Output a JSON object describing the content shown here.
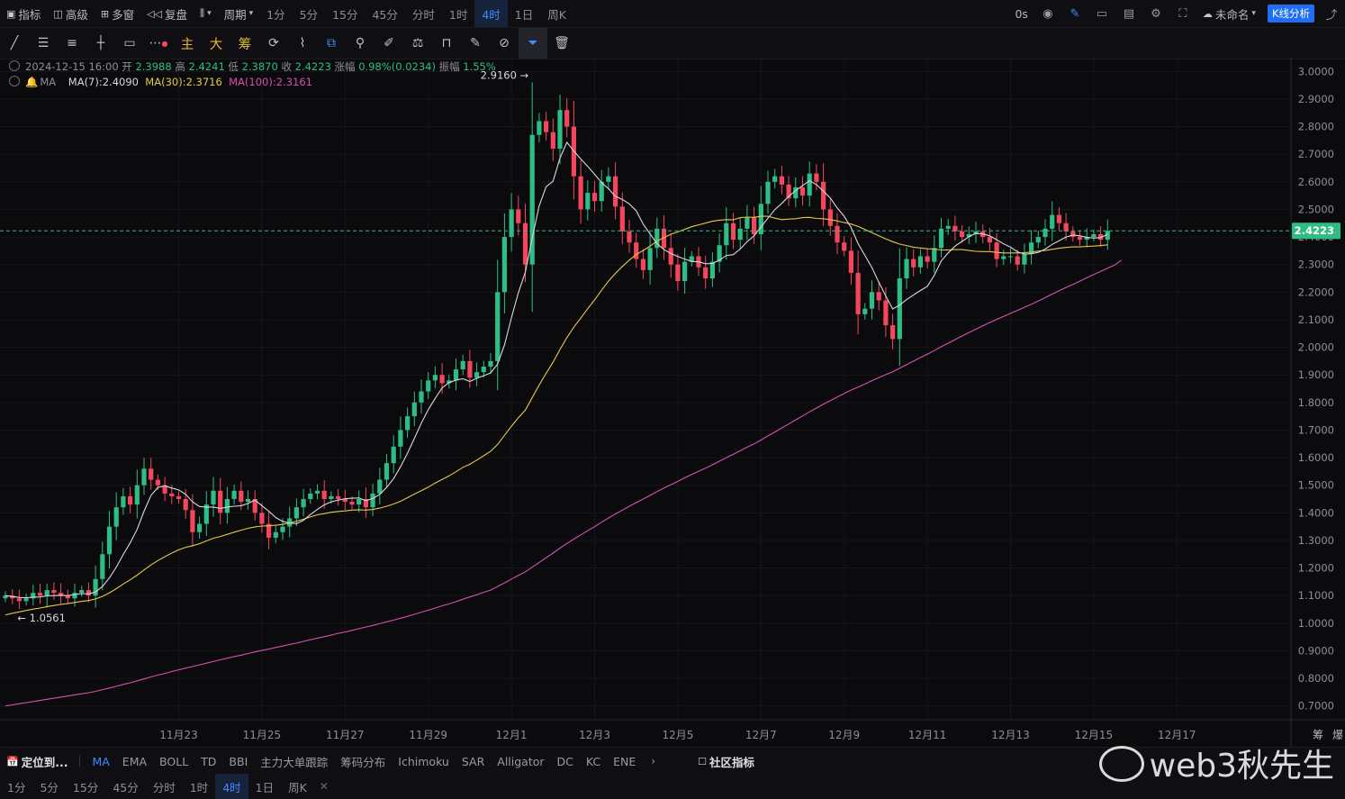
{
  "topbar": {
    "left": [
      {
        "label": "指标",
        "icon": "indicator-icon"
      },
      {
        "label": "高级",
        "icon": "advanced-icon"
      },
      {
        "label": "多窗",
        "icon": "multiwindow-icon"
      },
      {
        "label": "复盘",
        "icon": "replay-icon"
      }
    ],
    "chart_type_icon": "candlestick-icon",
    "period_label": "周期",
    "periods": [
      "1分",
      "5分",
      "15分",
      "45分",
      "分时",
      "1时",
      "4时",
      "1日",
      "周K"
    ],
    "active_period": "4时",
    "timer": "0s",
    "layout_name": "未命名",
    "k_analysis": "K线分析"
  },
  "toolbar": {
    "gold_labels": [
      "主",
      "大",
      "筹"
    ]
  },
  "legend": {
    "datetime": "2024-12-15 16:00",
    "open_label": "开",
    "open": "2.3988",
    "high_label": "高",
    "high": "2.4241",
    "low_label": "低",
    "low": "2.3870",
    "close_label": "收",
    "close": "2.4223",
    "change_label": "涨幅",
    "change": "0.98%(0.0234)",
    "amp_label": "振幅",
    "amp": "1.55%",
    "ma_title": "MA",
    "ma7": "MA(7):2.4090",
    "ma30": "MA(30):2.3716",
    "ma100": "MA(100):2.3161"
  },
  "indicators": {
    "locate": "定位到...",
    "items": [
      "MA",
      "EMA",
      "BOLL",
      "TD",
      "BBI",
      "主力大单跟踪",
      "筹码分布",
      "Ichimoku",
      "SAR",
      "Alligator",
      "DC",
      "KC",
      "ENE"
    ],
    "active": "MA",
    "community": "社区指标"
  },
  "bottombar": {
    "periods": [
      "1分",
      "5分",
      "15分",
      "45分",
      "分时",
      "1时",
      "4时",
      "1日",
      "周K"
    ],
    "active": "4时"
  },
  "watermark": "web3秋先生",
  "colors": {
    "up": "#2ebd85",
    "down": "#f6465d",
    "ma7": "#d8d8de",
    "ma30": "#e6c84a",
    "ma100": "#d94fb0",
    "last": "#2ebd85"
  },
  "chart_data": {
    "type": "candlestick",
    "interval": "4h",
    "ylim": [
      0.65,
      3.05
    ],
    "yticks": [
      "0.7000",
      "0.8000",
      "0.9000",
      "1.0000",
      "1.1000",
      "1.2000",
      "1.3000",
      "1.4000",
      "1.5000",
      "1.6000",
      "1.7000",
      "1.8000",
      "1.9000",
      "2.0000",
      "2.1000",
      "2.2000",
      "2.3000",
      "2.4000",
      "2.5000",
      "2.6000",
      "2.7000",
      "2.8000",
      "2.9000",
      "3.0000"
    ],
    "xticks": [
      "11月23",
      "11月25",
      "11月27",
      "11月29",
      "12月1",
      "12月3",
      "12月5",
      "12月7",
      "12月9",
      "12月11",
      "12月13",
      "12月15",
      "12月17"
    ],
    "xtick_candle_index": [
      25,
      37,
      49,
      61,
      73,
      85,
      97,
      109,
      121,
      133,
      145,
      157,
      169
    ],
    "last_price": "2.4223",
    "max_label": "2.9160",
    "min_label": "1.0561",
    "right_labels": [
      "筹",
      "爆"
    ],
    "close": [
      1.1,
      1.09,
      1.08,
      1.09,
      1.11,
      1.1,
      1.12,
      1.11,
      1.1,
      1.09,
      1.11,
      1.12,
      1.1,
      1.16,
      1.25,
      1.35,
      1.42,
      1.46,
      1.43,
      1.5,
      1.56,
      1.52,
      1.5,
      1.47,
      1.46,
      1.45,
      1.41,
      1.33,
      1.36,
      1.43,
      1.48,
      1.4,
      1.45,
      1.48,
      1.44,
      1.45,
      1.4,
      1.36,
      1.31,
      1.33,
      1.35,
      1.38,
      1.42,
      1.45,
      1.47,
      1.48,
      1.45,
      1.46,
      1.45,
      1.44,
      1.43,
      1.45,
      1.42,
      1.47,
      1.52,
      1.58,
      1.64,
      1.7,
      1.75,
      1.8,
      1.84,
      1.88,
      1.9,
      1.87,
      1.88,
      1.92,
      1.95,
      1.89,
      1.91,
      1.93,
      1.95,
      2.2,
      2.4,
      2.5,
      2.45,
      2.3,
      2.77,
      2.82,
      2.78,
      2.72,
      2.86,
      2.8,
      2.62,
      2.5,
      2.56,
      2.53,
      2.6,
      2.62,
      2.51,
      2.42,
      2.38,
      2.32,
      2.28,
      2.36,
      2.43,
      2.36,
      2.3,
      2.24,
      2.31,
      2.33,
      2.29,
      2.25,
      2.31,
      2.37,
      2.45,
      2.39,
      2.43,
      2.47,
      2.41,
      2.52,
      2.6,
      2.62,
      2.59,
      2.54,
      2.58,
      2.55,
      2.63,
      2.6,
      2.5,
      2.44,
      2.38,
      2.35,
      2.27,
      2.12,
      2.14,
      2.2,
      2.17,
      2.08,
      2.03,
      2.25,
      2.32,
      2.29,
      2.33,
      2.31,
      2.36,
      2.43,
      2.44,
      2.42,
      2.4,
      2.41,
      2.42,
      2.4,
      2.38,
      2.32,
      2.33,
      2.33,
      2.3,
      2.34,
      2.38,
      2.4,
      2.43,
      2.48,
      2.45,
      2.42,
      2.4,
      2.39,
      2.4,
      2.41,
      2.39,
      2.4223
    ],
    "ma7": [
      1.1,
      1.097,
      1.093,
      1.092,
      1.094,
      1.095,
      1.099,
      1.1,
      1.101,
      1.1,
      1.104,
      1.107,
      1.106,
      1.113,
      1.133,
      1.164,
      1.203,
      1.249,
      1.291,
      1.34,
      1.406,
      1.463,
      1.492,
      1.498,
      1.49,
      1.483,
      1.467,
      1.44,
      1.423,
      1.421,
      1.421,
      1.416,
      1.421,
      1.424,
      1.426,
      1.434,
      1.446,
      1.426,
      1.406,
      1.383,
      1.369,
      1.363,
      1.361,
      1.373,
      1.394,
      1.412,
      1.429,
      1.44,
      1.446,
      1.451,
      1.453,
      1.454,
      1.444,
      1.452,
      1.467,
      1.492,
      1.524,
      1.567,
      1.616,
      1.67,
      1.725,
      1.774,
      1.815,
      1.853,
      1.872,
      1.881,
      1.886,
      1.876,
      1.888,
      1.897,
      1.907,
      1.939,
      2.009,
      2.107,
      2.198,
      2.272,
      2.396,
      2.513,
      2.582,
      2.602,
      2.686,
      2.743,
      2.711,
      2.683,
      2.656,
      2.627,
      2.597,
      2.575,
      2.547,
      2.536,
      2.52,
      2.495,
      2.447,
      2.411,
      2.376,
      2.354,
      2.34,
      2.329,
      2.32,
      2.311,
      2.31,
      2.303,
      2.304,
      2.316,
      2.333,
      2.336,
      2.356,
      2.383,
      2.404,
      2.436,
      2.468,
      2.499,
      2.522,
      2.547,
      2.568,
      2.586,
      2.604,
      2.59,
      2.566,
      2.541,
      2.505,
      2.475,
      2.434,
      2.376,
      2.333,
      2.289,
      2.236,
      2.186,
      2.139,
      2.153,
      2.173,
      2.19,
      2.206,
      2.221,
      2.261,
      2.313,
      2.342,
      2.367,
      2.384,
      2.401,
      2.413,
      2.411,
      2.404,
      2.39,
      2.375,
      2.363,
      2.346,
      2.338,
      2.339,
      2.344,
      2.356,
      2.373,
      2.386,
      2.4,
      2.407,
      2.404,
      2.399,
      2.396,
      2.398,
      2.409
    ],
    "ma30": [
      1.03,
      1.036,
      1.041,
      1.046,
      1.051,
      1.055,
      1.06,
      1.064,
      1.068,
      1.071,
      1.075,
      1.079,
      1.082,
      1.088,
      1.097,
      1.11,
      1.125,
      1.142,
      1.157,
      1.174,
      1.193,
      1.211,
      1.227,
      1.241,
      1.254,
      1.266,
      1.275,
      1.281,
      1.288,
      1.298,
      1.308,
      1.314,
      1.322,
      1.33,
      1.337,
      1.344,
      1.349,
      1.352,
      1.353,
      1.355,
      1.358,
      1.363,
      1.37,
      1.377,
      1.385,
      1.393,
      1.397,
      1.402,
      1.405,
      1.407,
      1.41,
      1.411,
      1.41,
      1.412,
      1.417,
      1.424,
      1.432,
      1.442,
      1.455,
      1.468,
      1.48,
      1.493,
      1.508,
      1.521,
      1.534,
      1.549,
      1.565,
      1.576,
      1.591,
      1.607,
      1.623,
      1.648,
      1.681,
      1.714,
      1.745,
      1.772,
      1.818,
      1.863,
      1.906,
      1.946,
      1.992,
      2.035,
      2.073,
      2.106,
      2.14,
      2.172,
      2.207,
      2.24,
      2.268,
      2.293,
      2.316,
      2.337,
      2.351,
      2.367,
      2.385,
      2.398,
      2.41,
      2.418,
      2.428,
      2.437,
      2.444,
      2.45,
      2.457,
      2.461,
      2.463,
      2.462,
      2.47,
      2.472,
      2.471,
      2.475,
      2.475,
      2.468,
      2.463,
      2.465,
      2.466,
      2.47,
      2.471,
      2.467,
      2.466,
      2.463,
      2.458,
      2.452,
      2.447,
      2.438,
      2.427,
      2.416,
      2.404,
      2.393,
      2.383,
      2.374,
      2.369,
      2.363,
      2.36,
      2.357,
      2.356,
      2.353,
      2.353,
      2.354,
      2.354,
      2.351,
      2.348,
      2.347,
      2.347,
      2.344,
      2.342,
      2.342,
      2.342,
      2.343,
      2.345,
      2.349,
      2.351,
      2.355,
      2.359,
      2.362,
      2.364,
      2.364,
      2.366,
      2.367,
      2.369,
      2.3716
    ],
    "ma100": [
      0.7,
      0.704,
      0.708,
      0.712,
      0.716,
      0.72,
      0.724,
      0.728,
      0.732,
      0.736,
      0.74,
      0.744,
      0.748,
      0.753,
      0.759,
      0.765,
      0.771,
      0.778,
      0.784,
      0.791,
      0.798,
      0.805,
      0.812,
      0.818,
      0.825,
      0.831,
      0.837,
      0.843,
      0.849,
      0.855,
      0.861,
      0.867,
      0.873,
      0.879,
      0.884,
      0.89,
      0.896,
      0.901,
      0.906,
      0.912,
      0.917,
      0.923,
      0.928,
      0.934,
      0.94,
      0.946,
      0.951,
      0.957,
      0.963,
      0.968,
      0.974,
      0.98,
      0.986,
      0.992,
      0.998,
      1.005,
      1.011,
      1.018,
      1.025,
      1.032,
      1.04,
      1.047,
      1.055,
      1.063,
      1.07,
      1.078,
      1.087,
      1.095,
      1.103,
      1.112,
      1.12,
      1.133,
      1.146,
      1.16,
      1.173,
      1.186,
      1.203,
      1.22,
      1.237,
      1.254,
      1.272,
      1.289,
      1.305,
      1.32,
      1.335,
      1.35,
      1.366,
      1.381,
      1.396,
      1.41,
      1.424,
      1.437,
      1.45,
      1.463,
      1.477,
      1.49,
      1.502,
      1.514,
      1.527,
      1.539,
      1.551,
      1.562,
      1.574,
      1.587,
      1.6,
      1.612,
      1.625,
      1.638,
      1.65,
      1.664,
      1.679,
      1.693,
      1.708,
      1.722,
      1.737,
      1.751,
      1.766,
      1.78,
      1.794,
      1.807,
      1.82,
      1.833,
      1.845,
      1.856,
      1.867,
      1.879,
      1.89,
      1.901,
      1.911,
      1.924,
      1.937,
      1.95,
      1.963,
      1.975,
      1.988,
      2.002,
      2.015,
      2.028,
      2.041,
      2.053,
      2.066,
      2.078,
      2.09,
      2.101,
      2.112,
      2.123,
      2.134,
      2.145,
      2.156,
      2.168,
      2.18,
      2.193,
      2.205,
      2.217,
      2.228,
      2.24,
      2.252,
      2.264,
      2.275,
      2.287,
      2.298,
      2.3161
    ]
  }
}
